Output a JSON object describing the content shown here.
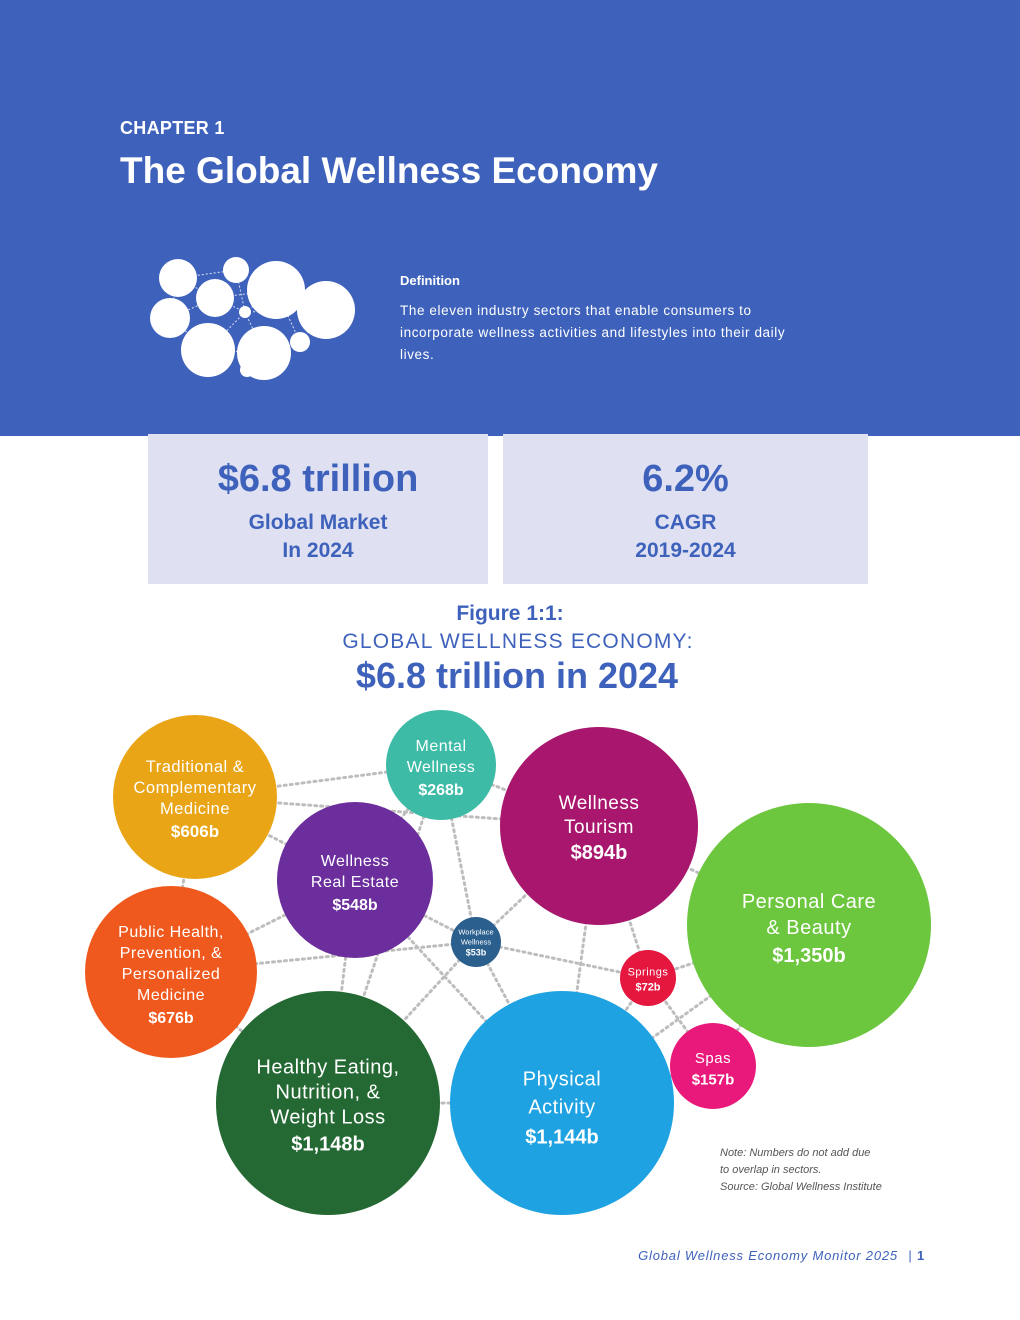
{
  "header": {
    "chapter": "CHAPTER 1",
    "title": "The Global Wellness Economy",
    "definition_heading": "Definition",
    "definition_text": "The eleven industry sectors that enable consumers to incorporate wellness activities and lifestyles into their daily lives."
  },
  "stats": [
    {
      "value": "$6.8 trillion",
      "label": "Global Market\nIn 2024"
    },
    {
      "value": "6.2%",
      "label": "CAGR\n2019-2024"
    }
  ],
  "figure": {
    "number": "Figure 1:1:",
    "subtitle": "GLOBAL WELLNESS ECONOMY:",
    "title": "$6.8 trillion in 2024"
  },
  "sectors": [
    {
      "lines": [
        "Traditional &",
        "Complementary",
        "Medicine"
      ],
      "value": "$606b",
      "value_billions": 606,
      "color": "#e9a516"
    },
    {
      "lines": [
        "Mental",
        "Wellness"
      ],
      "value": "$268b",
      "value_billions": 268,
      "color": "#3dbba6"
    },
    {
      "lines": [
        "Wellness",
        "Tourism"
      ],
      "value": "$894b",
      "value_billions": 894,
      "color": "#a8166d"
    },
    {
      "lines": [
        "Wellness",
        "Real Estate"
      ],
      "value": "$548b",
      "value_billions": 548,
      "color": "#6b2e9c"
    },
    {
      "lines": [
        "Personal Care",
        "& Beauty"
      ],
      "value": "$1,350b",
      "value_billions": 1350,
      "color": "#6cc63e"
    },
    {
      "lines": [
        "Workplace",
        "Wellness"
      ],
      "value": "$53b",
      "value_billions": 53,
      "color": "#2a5f8e"
    },
    {
      "lines": [
        "Public Health,",
        "Prevention, &",
        "Personalized",
        "Medicine"
      ],
      "value": "$676b",
      "value_billions": 676,
      "color": "#f0591e"
    },
    {
      "lines": [
        "Springs"
      ],
      "value": "$72b",
      "value_billions": 72,
      "color": "#e5173f"
    },
    {
      "lines": [
        "Spas"
      ],
      "value": "$157b",
      "value_billions": 157,
      "color": "#e8197b"
    },
    {
      "lines": [
        "Healthy Eating,",
        "Nutrition, &",
        "Weight Loss"
      ],
      "value": "$1,148b",
      "value_billions": 1148,
      "color": "#246933"
    },
    {
      "lines": [
        "Physical",
        "Activity"
      ],
      "value": "$1,144b",
      "value_billions": 1144,
      "color": "#1fa2e2"
    }
  ],
  "note": {
    "line1": "Note: Numbers do not add due",
    "line2": "to overlap in sectors.",
    "line3": "Source: Global Wellness Institute"
  },
  "footer": {
    "publication": "Global Wellness Economy Monitor 2025",
    "separator": "|",
    "page": "1"
  }
}
